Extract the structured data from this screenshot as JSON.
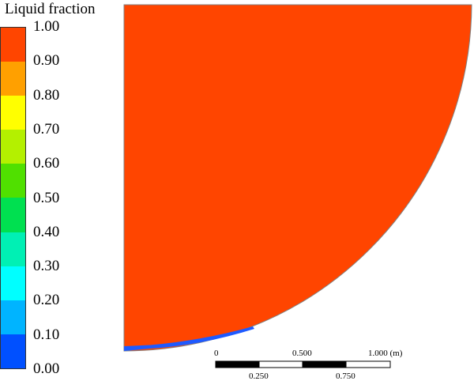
{
  "legend": {
    "title": "Liquid fraction",
    "ticks": [
      "1.00",
      "0.90",
      "0.80",
      "0.70",
      "0.60",
      "0.50",
      "0.40",
      "0.30",
      "0.20",
      "0.10",
      "0.00"
    ],
    "colors_top_to_bottom": [
      "#ff4500",
      "#ffa000",
      "#ffff00",
      "#b4f000",
      "#50e000",
      "#00e050",
      "#00f0b4",
      "#00ffff",
      "#00b4ff",
      "#0050ff"
    ]
  },
  "field": {
    "main_color": "#ff4500",
    "edge_color": "#1e5aff",
    "border_color": "#808080"
  },
  "scale_bar": {
    "top_labels": [
      "0",
      "0.500",
      "1.000 (m)"
    ],
    "bottom_labels": [
      "0.250",
      "0.750"
    ]
  }
}
